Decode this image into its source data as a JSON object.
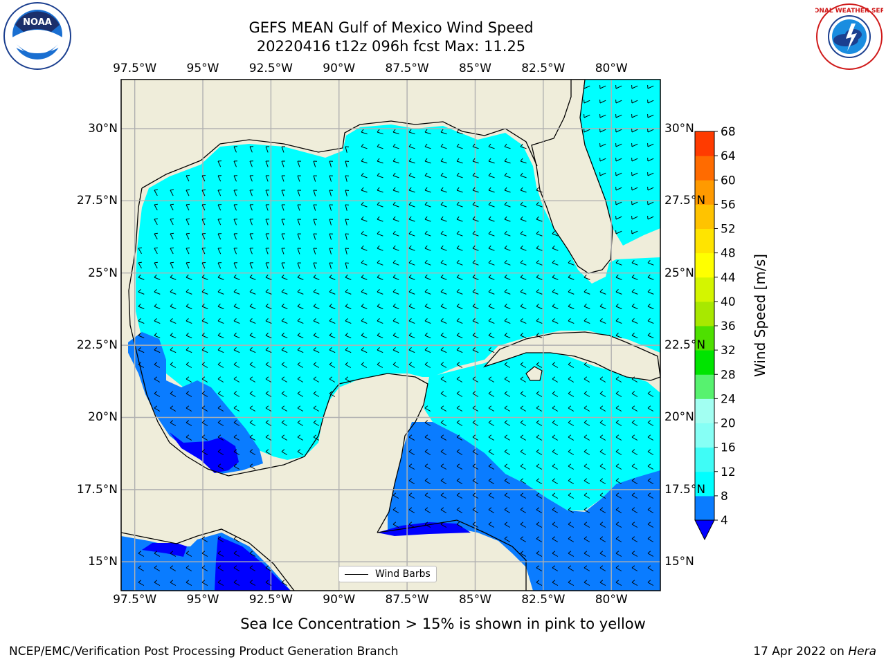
{
  "title": {
    "line1": "GEFS MEAN Gulf of Mexico Wind Speed",
    "line2": "20220416 t12z 096h fcst   Max: 11.25"
  },
  "logos": {
    "left_text": "NOAA",
    "right_text": "NATIONAL WEATHER SERVICE"
  },
  "axes": {
    "lon_ticks": [
      "97.5°W",
      "95°W",
      "92.5°W",
      "90°W",
      "87.5°W",
      "85°W",
      "82.5°W",
      "80°W"
    ],
    "lat_ticks": [
      "30°N",
      "27.5°N",
      "25°N",
      "22.5°N",
      "20°N",
      "17.5°N",
      "15°N"
    ],
    "lon_values": [
      -97.5,
      -95,
      -92.5,
      -90,
      -87.5,
      -85,
      -82.5,
      -80
    ],
    "lat_values": [
      30,
      27.5,
      25,
      22.5,
      20,
      17.5,
      15
    ],
    "lon_range": [
      -98,
      -78.2
    ],
    "lat_range": [
      14,
      31.7
    ]
  },
  "legend": {
    "label": "Wind Barbs",
    "location": "lower center"
  },
  "colorbar": {
    "label": "Wind Speed [m/s]",
    "ticks": [
      "4",
      "8",
      "12",
      "16",
      "20",
      "24",
      "28",
      "32",
      "36",
      "40",
      "44",
      "48",
      "52",
      "56",
      "60",
      "64",
      "68"
    ],
    "levels": [
      4,
      8,
      12,
      16,
      20,
      24,
      28,
      32,
      36,
      40,
      44,
      48,
      52,
      56,
      60,
      64,
      68
    ],
    "colors": [
      "#0a7cff",
      "#00ffff",
      "#3ffcf6",
      "#86fff5",
      "#a2fff2",
      "#57f26f",
      "#00e400",
      "#4ee000",
      "#a8e800",
      "#d4f500",
      "#ffff00",
      "#ffe400",
      "#ffc300",
      "#ff9a00",
      "#ff6b00",
      "#ff3b00",
      "#ff0000"
    ],
    "under_color": "#0000ff",
    "extend": "min"
  },
  "caption": "Sea Ice Concentration > 15% is shown in pink to yellow",
  "footer": {
    "left": "NCEP/EMC/Verification Post Processing Product Generation Branch",
    "right_date": "17 Apr 2022 on ",
    "right_machine": "Hera"
  },
  "colors": {
    "land": "#efedda",
    "ocean_low": "#0a7cff",
    "ocean_mid": "#00ffff",
    "ocean_min": "#0000ff",
    "grid": "#b0b0b0"
  }
}
